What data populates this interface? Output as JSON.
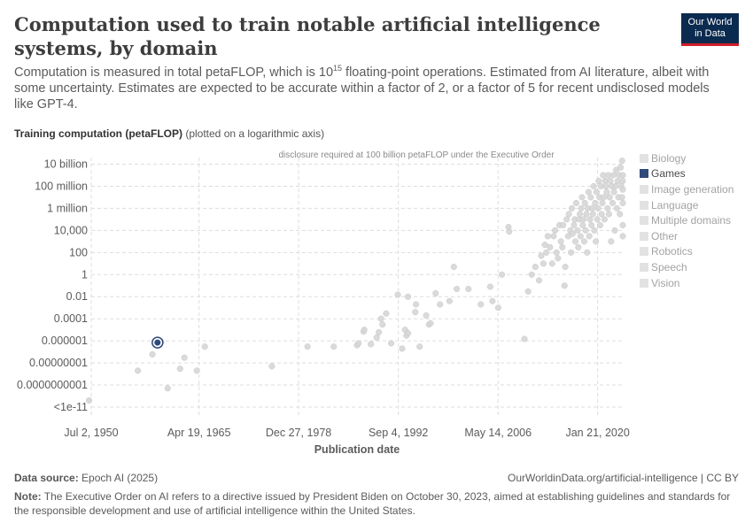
{
  "header": {
    "title": "Computation used to train notable artificial intelligence systems, by domain",
    "logo_line1": "Our World",
    "logo_line2": "in Data",
    "subtitle_part1": "Computation is measured in total petaFLOP, which is 10",
    "subtitle_exp": "15",
    "subtitle_part2": " floating-point operations. Estimated from AI literature, albeit with some uncertainty. Estimates are expected to be accurate within a factor of 2, or a factor of 5 for recent undisclosed models like GPT-4."
  },
  "footer": {
    "source_label": "Data source:",
    "source_value": " Epoch AI (2025)",
    "citation": "OurWorldinData.org/artificial-intelligence | CC BY",
    "note_label": "Note:",
    "note_text": " The Executive Order on AI refers to a directive issued by President Biden on October 30, 2023, aimed at establishing guidelines and standards for the responsible development and use of artificial intelligence within the United States."
  },
  "colors": {
    "highlight": "#2f4a7a",
    "muted_point": "#d6d6d6",
    "grid": "#dddddd",
    "logo_bg": "#0b2a4f",
    "logo_bar": "#cf1f2b"
  },
  "chart_data": {
    "type": "scatter",
    "title": "Computation used to train notable artificial intelligence systems, by domain",
    "ylabel_bold": "Training computation (petaFLOP)",
    "ylabel_note": " (plotted on a logarithmic axis)",
    "xlabel": "Publication date",
    "y_scale": "log",
    "grid": "dashed",
    "legend_placement": "right",
    "y_ticks": [
      {
        "value": 10000000000.0,
        "label": "10 billion"
      },
      {
        "value": 100000000.0,
        "label": "100 million"
      },
      {
        "value": 1000000.0,
        "label": "1 million"
      },
      {
        "value": 10000.0,
        "label": "10,000"
      },
      {
        "value": 100,
        "label": "100"
      },
      {
        "value": 1,
        "label": "1"
      },
      {
        "value": 0.01,
        "label": "0.01"
      },
      {
        "value": 0.0001,
        "label": "0.0001"
      },
      {
        "value": 1e-06,
        "label": "0.000001"
      },
      {
        "value": 1e-08,
        "label": "0.00000001"
      },
      {
        "value": 1e-10,
        "label": "0.0000000001"
      },
      {
        "value": 1e-12,
        "label": "<1e-11"
      }
    ],
    "x_ticks": [
      {
        "value": 1950.5,
        "label": "Jul 2, 1950"
      },
      {
        "value": 1965.3,
        "label": "Apr 19, 1965"
      },
      {
        "value": 1978.98,
        "label": "Dec 27, 1978"
      },
      {
        "value": 1992.68,
        "label": "Sep 4, 1992"
      },
      {
        "value": 2006.37,
        "label": "May 14, 2006"
      },
      {
        "value": 2020.05,
        "label": "Jan 21, 2020"
      }
    ],
    "x_range": [
      1950.5,
      2023.5
    ],
    "y_range_log10": [
      -12.8,
      10.6
    ],
    "reference_line": {
      "value": 100000000000.0,
      "label": "disclosure required at 100 billion petaFLOP under the Executive Order"
    },
    "legend": [
      {
        "name": "Biology",
        "color": "#e2e2e2",
        "active": false
      },
      {
        "name": "Games",
        "color": "#2f4a7a",
        "active": true
      },
      {
        "name": "Image generation",
        "color": "#e2e2e2",
        "active": false
      },
      {
        "name": "Language",
        "color": "#e2e2e2",
        "active": false
      },
      {
        "name": "Multiple domains",
        "color": "#e2e2e2",
        "active": false
      },
      {
        "name": "Other",
        "color": "#e2e2e2",
        "active": false
      },
      {
        "name": "Robotics",
        "color": "#e2e2e2",
        "active": false
      },
      {
        "name": "Speech",
        "color": "#e2e2e2",
        "active": false
      },
      {
        "name": "Vision",
        "color": "#e2e2e2",
        "active": false
      }
    ],
    "series": [
      {
        "name": "Games",
        "highlighted": true,
        "points": [
          [
            1959.6,
            7e-07
          ]
        ]
      },
      {
        "name": "Other domains",
        "highlighted": false,
        "points": [
          [
            1950.2,
            4e-12
          ],
          [
            1956.9,
            2e-09
          ],
          [
            1958.9,
            6e-08
          ],
          [
            1960.1,
            8e-07
          ],
          [
            1961.0,
            5e-11
          ],
          [
            1962.7,
            3e-09
          ],
          [
            1963.3,
            3e-08
          ],
          [
            1965.0,
            2e-09
          ],
          [
            1966.1,
            3e-07
          ],
          [
            1975.3,
            5e-09
          ],
          [
            1980.2,
            3e-07
          ],
          [
            1983.8,
            3e-07
          ],
          [
            1987.0,
            4e-07
          ],
          [
            1987.2,
            6e-07
          ],
          [
            1987.9,
            7e-06
          ],
          [
            1988.0,
            1e-05
          ],
          [
            1988.9,
            5e-07
          ],
          [
            1989.7,
            2e-06
          ],
          [
            1990.0,
            6e-06
          ],
          [
            1990.3,
            0.0001
          ],
          [
            1990.5,
            3e-05
          ],
          [
            1991.0,
            0.0003
          ],
          [
            1991.7,
            6e-07
          ],
          [
            1992.6,
            0.015
          ],
          [
            1993.2,
            2e-07
          ],
          [
            1993.6,
            1e-05
          ],
          [
            1993.8,
            3e-06
          ],
          [
            1994.0,
            5e-06
          ],
          [
            1994.0,
            0.01
          ],
          [
            1995.0,
            0.0004
          ],
          [
            1995.1,
            0.002
          ],
          [
            1995.6,
            3e-07
          ],
          [
            1996.5,
            0.0002
          ],
          [
            1996.9,
            3e-05
          ],
          [
            1997.1,
            4e-05
          ],
          [
            1997.8,
            0.02
          ],
          [
            1998.4,
            0.002
          ],
          [
            1999.7,
            0.004
          ],
          [
            2000.3,
            5
          ],
          [
            2000.7,
            0.05
          ],
          [
            2002.3,
            0.05
          ],
          [
            2004.0,
            0.002
          ],
          [
            2005.3,
            0.08
          ],
          [
            2005.6,
            0.004
          ],
          [
            2006.4,
            0.001
          ],
          [
            2006.9,
            1
          ],
          [
            2007.8,
            20000.0
          ],
          [
            2007.9,
            8000.0
          ],
          [
            2010.0,
            1.5e-06
          ],
          [
            2010.5,
            0.03
          ],
          [
            2011.0,
            1
          ],
          [
            2011.5,
            5
          ],
          [
            2012.0,
            0.3
          ],
          [
            2012.3,
            50
          ],
          [
            2012.6,
            10
          ],
          [
            2012.8,
            500
          ],
          [
            2013.0,
            100
          ],
          [
            2013.2,
            3000.0
          ],
          [
            2013.5,
            300
          ],
          [
            2013.8,
            10
          ],
          [
            2014.0,
            3000.0
          ],
          [
            2014.2,
            10000.0
          ],
          [
            2014.4,
            100
          ],
          [
            2014.6,
            30
          ],
          [
            2014.8,
            30000.0
          ],
          [
            2015.0,
            1000.0
          ],
          [
            2015.2,
            300
          ],
          [
            2015.3,
            30000.0
          ],
          [
            2015.5,
            0.1
          ],
          [
            2015.6,
            5
          ],
          [
            2015.8,
            100000.0
          ],
          [
            2016.0,
            3000.0
          ],
          [
            2016.1,
            300000.0
          ],
          [
            2016.3,
            10000.0
          ],
          [
            2016.4,
            100
          ],
          [
            2016.5,
            1000000.0
          ],
          [
            2016.6,
            5000.0
          ],
          [
            2016.8,
            30000.0
          ],
          [
            2016.9,
            100000.0
          ],
          [
            2017.0,
            1000.0
          ],
          [
            2017.1,
            3000000.0
          ],
          [
            2017.3,
            10000.0
          ],
          [
            2017.4,
            300
          ],
          [
            2017.5,
            100000.0
          ],
          [
            2017.6,
            300000.0
          ],
          [
            2017.7,
            3000.0
          ],
          [
            2017.8,
            1000000.0
          ],
          [
            2017.9,
            10000000.0
          ],
          [
            2018.0,
            30000.0
          ],
          [
            2018.1,
            100000.0
          ],
          [
            2018.2,
            1000.0
          ],
          [
            2018.3,
            3000000.0
          ],
          [
            2018.4,
            10000.0
          ],
          [
            2018.5,
            300000.0
          ],
          [
            2018.6,
            100
          ],
          [
            2018.7,
            1000000.0
          ],
          [
            2018.8,
            30000000.0
          ],
          [
            2018.9,
            3000.0
          ],
          [
            2019.0,
            100000.0
          ],
          [
            2019.1,
            10000000.0
          ],
          [
            2019.2,
            30000.0
          ],
          [
            2019.3,
            1000000.0
          ],
          [
            2019.4,
            300000.0
          ],
          [
            2019.5,
            100000000.0
          ],
          [
            2019.6,
            10000.0
          ],
          [
            2019.7,
            3000000.0
          ],
          [
            2019.8,
            1000.0
          ],
          [
            2019.9,
            30000000.0
          ],
          [
            2020.0,
            100000.0
          ],
          [
            2020.1,
            1000000.0
          ],
          [
            2020.2,
            300000000.0
          ],
          [
            2020.3,
            10000000.0
          ],
          [
            2020.4,
            30000.0
          ],
          [
            2020.5,
            100000000.0
          ],
          [
            2020.6,
            300000.0
          ],
          [
            2020.7,
            3000000.0
          ],
          [
            2020.8,
            1000000000.0
          ],
          [
            2020.9,
            10000000.0
          ],
          [
            2021.0,
            100000.0
          ],
          [
            2021.1,
            300000000.0
          ],
          [
            2021.2,
            100000000.0
          ],
          [
            2021.3,
            30000000.0
          ],
          [
            2021.4,
            1000000.0
          ],
          [
            2021.5,
            1000000000.0
          ],
          [
            2021.6,
            300000.0
          ],
          [
            2021.7,
            10000000.0
          ],
          [
            2021.8,
            300000000.0
          ],
          [
            2021.9,
            1000.0
          ],
          [
            2022.0,
            100000000.0
          ],
          [
            2022.1,
            3000000.0
          ],
          [
            2022.2,
            1000000000.0
          ],
          [
            2022.3,
            30000000.0
          ],
          [
            2022.4,
            10000.0
          ],
          [
            2022.5,
            100000000.0
          ],
          [
            2022.6,
            3000000000.0
          ],
          [
            2022.7,
            1000000.0
          ],
          [
            2022.8,
            300000000.0
          ],
          [
            2022.9,
            10000000.0
          ],
          [
            2023.0,
            1000000000.0
          ],
          [
            2023.1,
            300000.0
          ],
          [
            2023.2,
            5000000000.0
          ],
          [
            2023.3,
            100000000.0
          ],
          [
            2023.4,
            20000000000.0
          ],
          [
            2023.4,
            10000000.0
          ],
          [
            2023.5,
            300000000.0
          ],
          [
            2023.5,
            3000000.0
          ],
          [
            2023.5,
            1000000000.0
          ],
          [
            2023.5,
            50000000.0
          ],
          [
            2023.5,
            30000.0
          ],
          [
            2023.5,
            3000.0
          ]
        ]
      }
    ]
  }
}
